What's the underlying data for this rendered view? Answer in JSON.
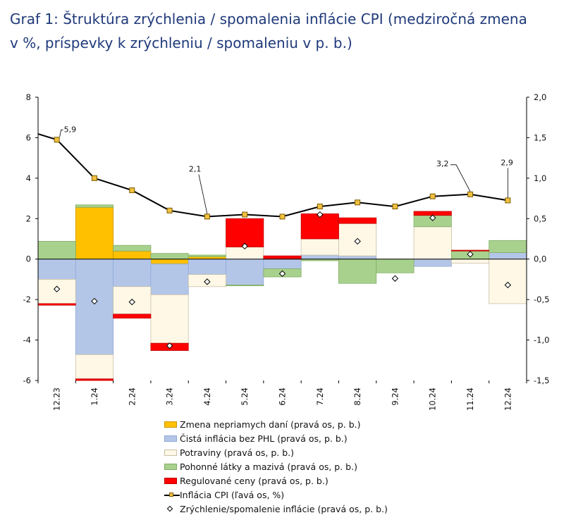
{
  "title": {
    "line1": "Graf 1: Štruktúra zrýchlenia / spomalenia inflácie CPI (medziročná zmena",
    "line2": "v %, príspevky k zrýchleniu / spomaleniu v p. b.)"
  },
  "chart_data": {
    "type": "bar",
    "categories": [
      "12.23",
      "1.24",
      "2.24",
      "3.24",
      "4.24",
      "5.24",
      "6.24",
      "7.24",
      "8.24",
      "9.24",
      "10.24",
      "11.24",
      "12.24"
    ],
    "left_axis": {
      "label": "Inflácia CPI (ľavá os, %)",
      "ylim": [
        -6,
        8
      ],
      "ticks": [
        "8",
        "6",
        "4",
        "2",
        "0",
        "-2",
        "-4",
        "-6"
      ],
      "tick_values": [
        8,
        6,
        4,
        2,
        0,
        -2,
        -4,
        -6
      ]
    },
    "right_axis": {
      "ylim": [
        -1.5,
        2.0
      ],
      "ticks": [
        "2,0",
        "1,5",
        "1,0",
        "0,5",
        "0,0",
        "-0,5",
        "-1,0",
        "-1,5"
      ],
      "tick_values": [
        2.0,
        1.5,
        1.0,
        0.5,
        0.0,
        -0.5,
        -1.0,
        -1.5
      ]
    },
    "series": [
      {
        "name": "Zmena nepriamych daní (pravá os, p. b.)",
        "key": "taxes",
        "color": "#ffc000",
        "stroke": "#c89600",
        "values": [
          0,
          0.64,
          0.1,
          -0.06,
          0.03,
          0,
          0,
          0,
          0,
          0,
          0,
          0,
          0
        ]
      },
      {
        "name": "Čistá inflácia bez PHL (pravá os, p. b.)",
        "key": "core",
        "color": "#b4c6e7",
        "stroke": "#8ea9db",
        "values": [
          -0.25,
          -1.18,
          -0.34,
          -0.38,
          -0.19,
          -0.32,
          -0.12,
          0.05,
          0.04,
          0,
          -0.09,
          0,
          0.08
        ]
      },
      {
        "name": "Potraviny (pravá os, p. b.)",
        "key": "food",
        "color": "#fff8e6",
        "stroke": "#c9c0a8",
        "values": [
          -0.3,
          -0.3,
          -0.34,
          -0.6,
          -0.15,
          0.15,
          0,
          0.2,
          0.4,
          0,
          0.4,
          -0.05,
          -0.55
        ]
      },
      {
        "name": "Pohonné látky a mazivá (pravá os, p. b.)",
        "key": "fuel",
        "color": "#a9d18e",
        "stroke": "#7fae62",
        "values": [
          0.22,
          0.03,
          0.07,
          0.07,
          0.02,
          -0.01,
          -0.1,
          -0.02,
          -0.3,
          -0.17,
          0.14,
          0.1,
          0.15
        ]
      },
      {
        "name": "Regulované ceny (pravá os, p. b.)",
        "key": "regulated",
        "color": "#ff0000",
        "stroke": "#c00000",
        "values": [
          -0.02,
          -0.02,
          -0.05,
          -0.09,
          0,
          0.35,
          0.04,
          0.31,
          0.07,
          0,
          0.05,
          0.01,
          0
        ]
      }
    ],
    "line_series": {
      "name": "Inflácia CPI (ľavá os, %)",
      "values": [
        5.9,
        4.0,
        3.4,
        2.4,
        2.1,
        2.2,
        2.1,
        2.6,
        2.8,
        2.6,
        3.1,
        3.2,
        2.9
      ]
    },
    "diamond_series": {
      "name": "Zrýchlenie/spomalenie inflácie (pravá os, p. b.)",
      "values": [
        -0.37,
        -0.52,
        -0.53,
        -1.07,
        -0.28,
        0.16,
        -0.18,
        0.55,
        0.22,
        -0.24,
        0.51,
        0.06,
        -0.32
      ]
    },
    "annotations": [
      {
        "index": 0,
        "text": "5,9"
      },
      {
        "index": 4,
        "text": "2,1"
      },
      {
        "index": 11,
        "text": "3,2"
      },
      {
        "index": 12,
        "text": "2,9"
      }
    ]
  },
  "legend": {
    "items": [
      {
        "label": "Zmena nepriamych daní (pravá os, p. b.)",
        "kind": "swatch",
        "color": "#ffc000",
        "stroke": "#c89600"
      },
      {
        "label": "Čistá inflácia bez PHL (pravá os, p. b.)",
        "kind": "swatch",
        "color": "#b4c6e7",
        "stroke": "#8ea9db"
      },
      {
        "label": "Potraviny (pravá os, p. b.)",
        "kind": "swatch",
        "color": "#fff8e6",
        "stroke": "#c9c0a8"
      },
      {
        "label": "Pohonné látky a mazivá (pravá os, p. b.)",
        "kind": "swatch",
        "color": "#a9d18e",
        "stroke": "#7fae62"
      },
      {
        "label": "Regulované ceny (pravá os, p. b.)",
        "kind": "swatch",
        "color": "#ff0000",
        "stroke": "#c00000"
      },
      {
        "label": "Inflácia CPI (ľavá os, %)",
        "kind": "line"
      },
      {
        "label": "Zrýchlenie/spomalenie inflácie (pravá os, p. b.)",
        "kind": "diamond"
      }
    ]
  }
}
